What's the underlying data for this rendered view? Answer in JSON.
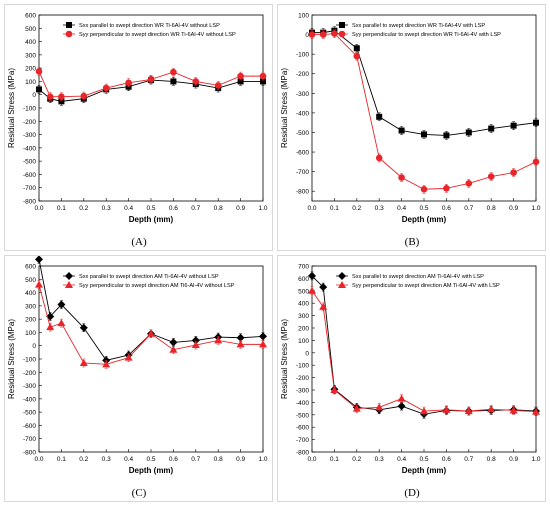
{
  "chart_data": [
    {
      "type": "line",
      "panel_label": "(A)",
      "xlabel": "Depth (mm)",
      "ylabel": "Residual Stress (MPa)",
      "xlim": [
        0.0,
        1.0
      ],
      "ylim": [
        -800,
        600
      ],
      "xticks": [
        "0.0",
        "0.1",
        "0.2",
        "0.3",
        "0.4",
        "0.5",
        "0.6",
        "0.7",
        "0.8",
        "0.9",
        "1.0"
      ],
      "yticks": [
        "600",
        "500",
        "400",
        "300",
        "200",
        "100",
        "0",
        "-100",
        "-200",
        "-300",
        "-400",
        "-500",
        "-600",
        "-700",
        "-800"
      ],
      "x": [
        0.0,
        0.05,
        0.1,
        0.2,
        0.3,
        0.4,
        0.5,
        0.6,
        0.7,
        0.8,
        0.9,
        1.0
      ],
      "legend_position": "top-right",
      "series": [
        {
          "name": "Sxx parallel to swept direction WR Ti-6Al-4V without LSP",
          "marker": "square",
          "color": "#000000",
          "values": [
            40,
            -30,
            -50,
            -30,
            40,
            60,
            110,
            100,
            80,
            50,
            100,
            100
          ]
        },
        {
          "name": "Syy perpendicular to swept direction WR Ti-6Al-4V without LSP",
          "marker": "circle",
          "color": "#e8252a",
          "values": [
            175,
            -15,
            -15,
            -10,
            50,
            90,
            115,
            170,
            100,
            70,
            140,
            140
          ]
        }
      ]
    },
    {
      "type": "line",
      "panel_label": "(B)",
      "xlabel": "Depth (mm)",
      "ylabel": "Residual Stress (MPa)",
      "xlim": [
        0.0,
        1.0
      ],
      "ylim": [
        -850,
        100
      ],
      "xticks": [
        "0.0",
        "0.1",
        "0.2",
        "0.3",
        "0.4",
        "0.5",
        "0.6",
        "0.7",
        "0.8",
        "0.9",
        "1.0"
      ],
      "yticks": [
        "100",
        "0",
        "-100",
        "-200",
        "-300",
        "-400",
        "-500",
        "-600",
        "-700",
        "-800"
      ],
      "x": [
        0.0,
        0.05,
        0.1,
        0.2,
        0.3,
        0.4,
        0.5,
        0.6,
        0.7,
        0.8,
        0.9,
        1.0
      ],
      "legend_position": "top-right",
      "series": [
        {
          "name": "Sxx parallel to swept direction WR Ti-6Al-4V with LSP",
          "marker": "square",
          "color": "#000000",
          "values": [
            10,
            10,
            20,
            -70,
            -420,
            -490,
            -510,
            -515,
            -500,
            -480,
            -465,
            -450
          ]
        },
        {
          "name": "Syy perpendicular to swept direction WR Ti-6Al-4V with LSP",
          "marker": "circle",
          "color": "#e8252a",
          "values": [
            0,
            0,
            5,
            -110,
            -630,
            -730,
            -790,
            -785,
            -760,
            -725,
            -705,
            -650
          ]
        }
      ]
    },
    {
      "type": "line",
      "panel_label": "(C)",
      "xlabel": "Depth (mm)",
      "ylabel": "Residual Stress (MPa)",
      "xlim": [
        0.0,
        1.0
      ],
      "ylim": [
        -800,
        600
      ],
      "xticks": [
        "0.0",
        "0.1",
        "0.2",
        "0.3",
        "0.4",
        "0.5",
        "0.6",
        "0.7",
        "0.8",
        "0.9",
        "1.0"
      ],
      "yticks": [
        "600",
        "500",
        "400",
        "300",
        "200",
        "100",
        "0",
        "-100",
        "-200",
        "-300",
        "-400",
        "-500",
        "-600",
        "-700",
        "-800"
      ],
      "x": [
        0.0,
        0.05,
        0.1,
        0.2,
        0.3,
        0.4,
        0.5,
        0.6,
        0.7,
        0.8,
        0.9,
        1.0
      ],
      "legend_position": "top-right",
      "series": [
        {
          "name": "Sxx parallel to swept direction AM Ti-6Al-4V without LSP",
          "marker": "diamond",
          "color": "#000000",
          "values": [
            650,
            220,
            310,
            135,
            -110,
            -70,
            90,
            25,
            40,
            65,
            60,
            70
          ]
        },
        {
          "name": "Syy perpendicular to swept direction AM Ti6-Al-4V without LSP",
          "marker": "triangle",
          "color": "#e8252a",
          "values": [
            460,
            140,
            170,
            -130,
            -140,
            -90,
            90,
            -30,
            5,
            40,
            10,
            10
          ]
        }
      ]
    },
    {
      "type": "line",
      "panel_label": "(D)",
      "xlabel": "Depth (mm)",
      "ylabel": "Residual Stress (MPa)",
      "xlim": [
        0.0,
        1.0
      ],
      "ylim": [
        -800,
        700
      ],
      "xticks": [
        "0.0",
        "0.1",
        "0.2",
        "0.3",
        "0.4",
        "0.5",
        "0.6",
        "0.7",
        "0.8",
        "0.9",
        "1.0"
      ],
      "yticks": [
        "700",
        "600",
        "500",
        "400",
        "300",
        "200",
        "100",
        "0",
        "-100",
        "-200",
        "-300",
        "-400",
        "-500",
        "-600",
        "-700",
        "-800"
      ],
      "x": [
        0.0,
        0.05,
        0.1,
        0.2,
        0.3,
        0.4,
        0.5,
        0.6,
        0.7,
        0.8,
        0.9,
        1.0
      ],
      "legend_position": "top-right",
      "series": [
        {
          "name": "Sxx parallel to swept direction AM Ti-6Al-4V with LSP",
          "marker": "diamond",
          "color": "#000000",
          "values": [
            620,
            530,
            -295,
            -440,
            -460,
            -430,
            -495,
            -465,
            -470,
            -465,
            -460,
            -470
          ]
        },
        {
          "name": "Syy perpendicular to swept direction AM Ti-6Al-4V with LSP",
          "marker": "triangle",
          "color": "#e8252a",
          "values": [
            500,
            370,
            -300,
            -450,
            -440,
            -370,
            -470,
            -460,
            -470,
            -455,
            -465,
            -475
          ]
        }
      ]
    }
  ]
}
